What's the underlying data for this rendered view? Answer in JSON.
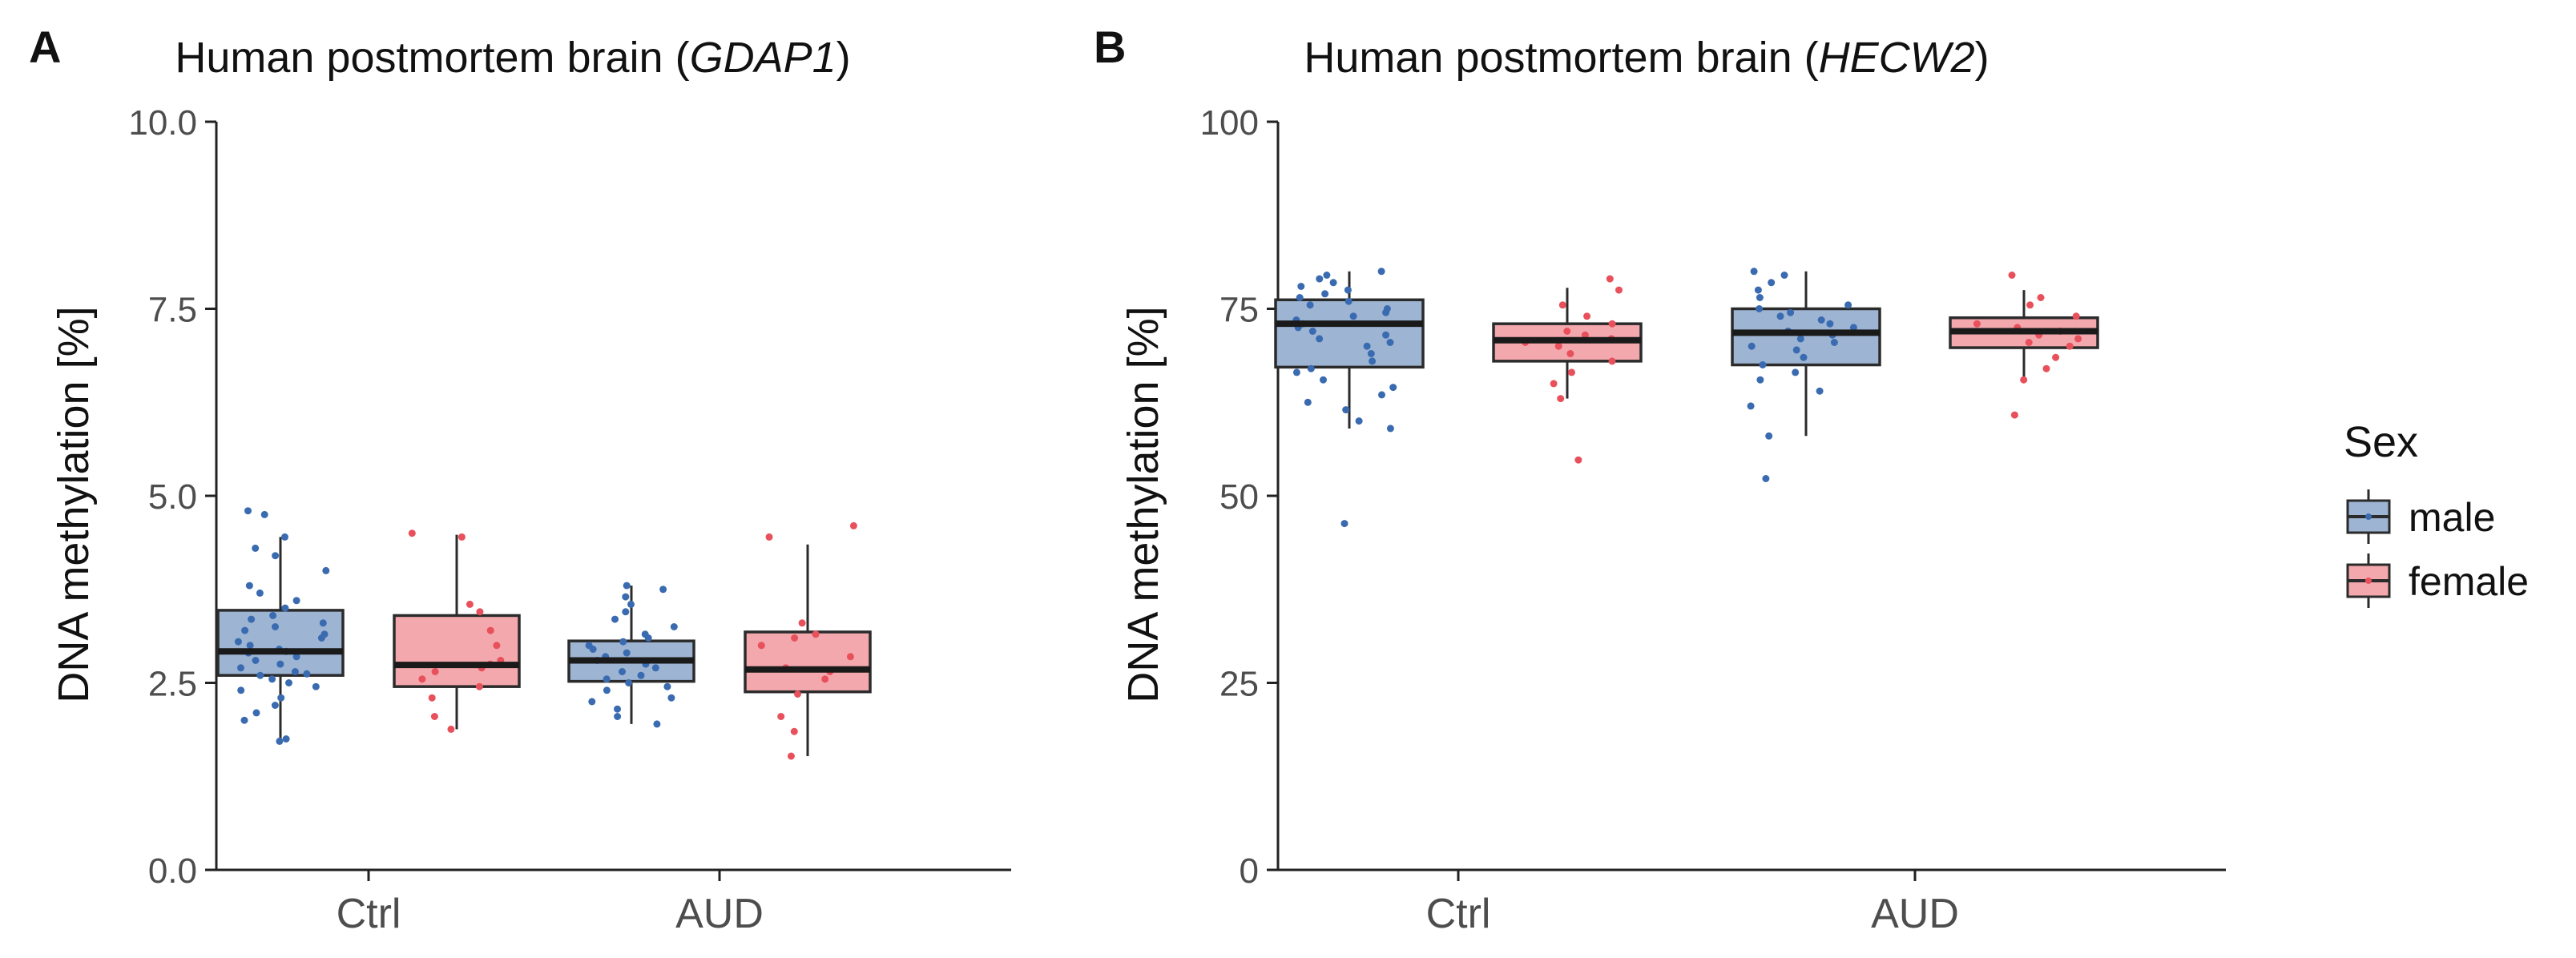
{
  "colors": {
    "male_fill": "#9DB4D3",
    "male_point": "#3A6BB0",
    "female_fill": "#F2A8AD",
    "female_point": "#E8515B",
    "axis": "#222222",
    "tick_text": "#4D4D4D",
    "box_line": "#2B2B2B"
  },
  "legend": {
    "title": "Sex",
    "items": [
      {
        "label": "male",
        "fill": "#9DB4D3",
        "point": "#3A6BB0"
      },
      {
        "label": "female",
        "fill": "#F2A8AD",
        "point": "#E8515B"
      }
    ]
  },
  "chart_data": [
    {
      "type": "box",
      "panel_label": "A",
      "title": "Human postmortem brain (",
      "title_gene": "GDAP1",
      "title_suffix": ")",
      "ylabel": "DNA methylation [%]",
      "xlabel": "",
      "categories": [
        "Ctrl",
        "AUD"
      ],
      "ylim": [
        0,
        10
      ],
      "yticks": [
        0,
        2.5,
        5,
        7.5,
        10
      ],
      "ytick_labels": [
        "0.0",
        "2.5",
        "5.0",
        "7.5",
        "10.0"
      ],
      "grid": false,
      "series": [
        {
          "name": "male",
          "boxes": [
            {
              "category": "Ctrl",
              "q1": 2.6,
              "median": 2.92,
              "q3": 3.47,
              "whisker_low": 1.72,
              "whisker_high": 4.45,
              "points": [
                1.72,
                1.75,
                2.0,
                2.1,
                2.2,
                2.3,
                2.4,
                2.45,
                2.5,
                2.55,
                2.6,
                2.62,
                2.65,
                2.7,
                2.75,
                2.8,
                2.85,
                2.9,
                2.92,
                2.95,
                3.0,
                3.05,
                3.1,
                3.15,
                3.2,
                3.25,
                3.3,
                3.35,
                3.4,
                3.5,
                3.6,
                3.7,
                3.8,
                4.0,
                4.2,
                4.3,
                4.45,
                4.75,
                4.8
              ]
            },
            {
              "category": "AUD",
              "q1": 2.52,
              "median": 2.8,
              "q3": 3.06,
              "whisker_low": 1.95,
              "whisker_high": 3.8,
              "points": [
                1.95,
                2.05,
                2.15,
                2.25,
                2.3,
                2.4,
                2.45,
                2.5,
                2.55,
                2.6,
                2.65,
                2.7,
                2.75,
                2.8,
                2.85,
                2.9,
                2.95,
                3.0,
                3.05,
                3.1,
                3.15,
                3.25,
                3.35,
                3.45,
                3.55,
                3.65,
                3.75,
                3.8
              ]
            }
          ]
        },
        {
          "name": "female",
          "boxes": [
            {
              "category": "Ctrl",
              "q1": 2.45,
              "median": 2.74,
              "q3": 3.4,
              "whisker_low": 1.88,
              "whisker_high": 4.48,
              "points": [
                1.88,
                2.05,
                2.3,
                2.45,
                2.55,
                2.65,
                2.7,
                2.75,
                2.8,
                3.0,
                3.2,
                3.45,
                3.55,
                4.45,
                4.5
              ]
            },
            {
              "category": "AUD",
              "q1": 2.38,
              "median": 2.68,
              "q3": 3.18,
              "whisker_low": 1.52,
              "whisker_high": 4.35,
              "points": [
                1.52,
                1.85,
                2.05,
                2.35,
                2.55,
                2.65,
                2.7,
                2.85,
                3.0,
                3.1,
                3.15,
                3.3,
                4.45,
                4.6
              ]
            }
          ]
        }
      ]
    },
    {
      "type": "box",
      "panel_label": "B",
      "title": "Human postmortem brain (",
      "title_gene": "HECW2",
      "title_suffix": ")",
      "ylabel": "DNA methylation [%]",
      "xlabel": "",
      "categories": [
        "Ctrl",
        "AUD"
      ],
      "ylim": [
        0,
        100
      ],
      "yticks": [
        0,
        25,
        50,
        75,
        100
      ],
      "ytick_labels": [
        "0",
        "25",
        "50",
        "75",
        "100"
      ],
      "grid": false,
      "series": [
        {
          "name": "male",
          "boxes": [
            {
              "category": "Ctrl",
              "q1": 67.2,
              "median": 73.0,
              "q3": 76.2,
              "whisker_low": 59.0,
              "whisker_high": 80.0,
              "points": [
                46.3,
                59.0,
                60.0,
                61.5,
                62.5,
                63.5,
                64.5,
                65.5,
                66.5,
                67.0,
                68.0,
                69.0,
                70.0,
                70.5,
                71.0,
                71.5,
                72.0,
                72.5,
                73.0,
                73.5,
                74.0,
                74.5,
                75.0,
                75.5,
                76.0,
                76.5,
                77.0,
                77.5,
                78.0,
                78.5,
                79.0,
                79.5,
                80.0
              ]
            },
            {
              "category": "AUD",
              "q1": 67.5,
              "median": 71.8,
              "q3": 75.0,
              "whisker_low": 58.0,
              "whisker_high": 80.0,
              "points": [
                52.3,
                58.0,
                62.0,
                64.0,
                65.5,
                66.5,
                67.5,
                68.5,
                69.5,
                70.0,
                70.5,
                71.0,
                71.5,
                72.0,
                72.5,
                73.0,
                73.5,
                74.0,
                74.5,
                75.0,
                75.5,
                76.5,
                77.5,
                78.5,
                79.5,
                80.0
              ]
            }
          ]
        },
        {
          "name": "female",
          "boxes": [
            {
              "category": "Ctrl",
              "q1": 68.0,
              "median": 70.8,
              "q3": 73.0,
              "whisker_low": 63.0,
              "whisker_high": 77.8,
              "points": [
                54.8,
                63.0,
                65.0,
                66.5,
                68.0,
                69.0,
                70.0,
                70.5,
                71.0,
                71.5,
                72.0,
                73.0,
                74.0,
                75.5,
                77.5,
                79.0
              ]
            },
            {
              "category": "AUD",
              "q1": 69.8,
              "median": 72.0,
              "q3": 73.8,
              "whisker_low": 65.5,
              "whisker_high": 77.5,
              "points": [
                60.8,
                65.5,
                67.0,
                68.5,
                70.0,
                70.5,
                71.0,
                71.5,
                72.0,
                72.5,
                73.0,
                74.0,
                75.5,
                76.5,
                79.5
              ]
            }
          ]
        }
      ]
    }
  ]
}
